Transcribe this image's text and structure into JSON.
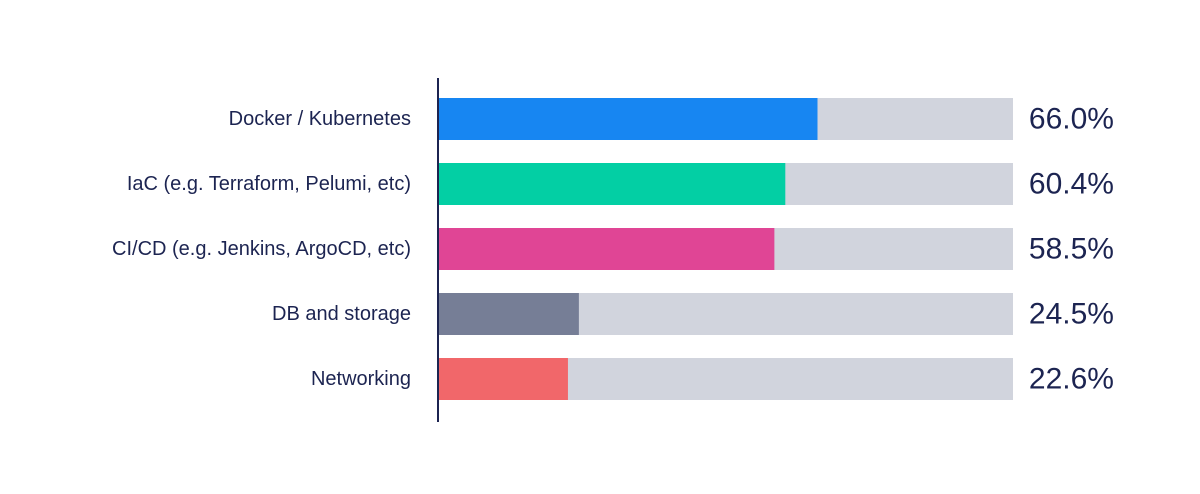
{
  "chart_data": {
    "type": "bar",
    "orientation": "horizontal",
    "title": "",
    "xlabel": "",
    "ylabel": "",
    "xlim": [
      0,
      100
    ],
    "grid": false,
    "legend": "none",
    "track_color": "#d1d4dd",
    "axis_color": "#1c2451",
    "text_color": "#1c2451",
    "categories": [
      "Docker / Kubernetes",
      "IaC (e.g. Terraform, Pelumi, etc)",
      "CI/CD (e.g. Jenkins, ArgoCD, etc)",
      "DB and storage",
      "Networking"
    ],
    "values": [
      66.0,
      60.4,
      58.5,
      24.5,
      22.6
    ],
    "value_labels": [
      "66.0%",
      "60.4%",
      "58.5%",
      "24.5%",
      "22.6%"
    ],
    "colors": [
      "#1786f2",
      "#03cfa4",
      "#e04595",
      "#767e96",
      "#f1676a"
    ]
  }
}
